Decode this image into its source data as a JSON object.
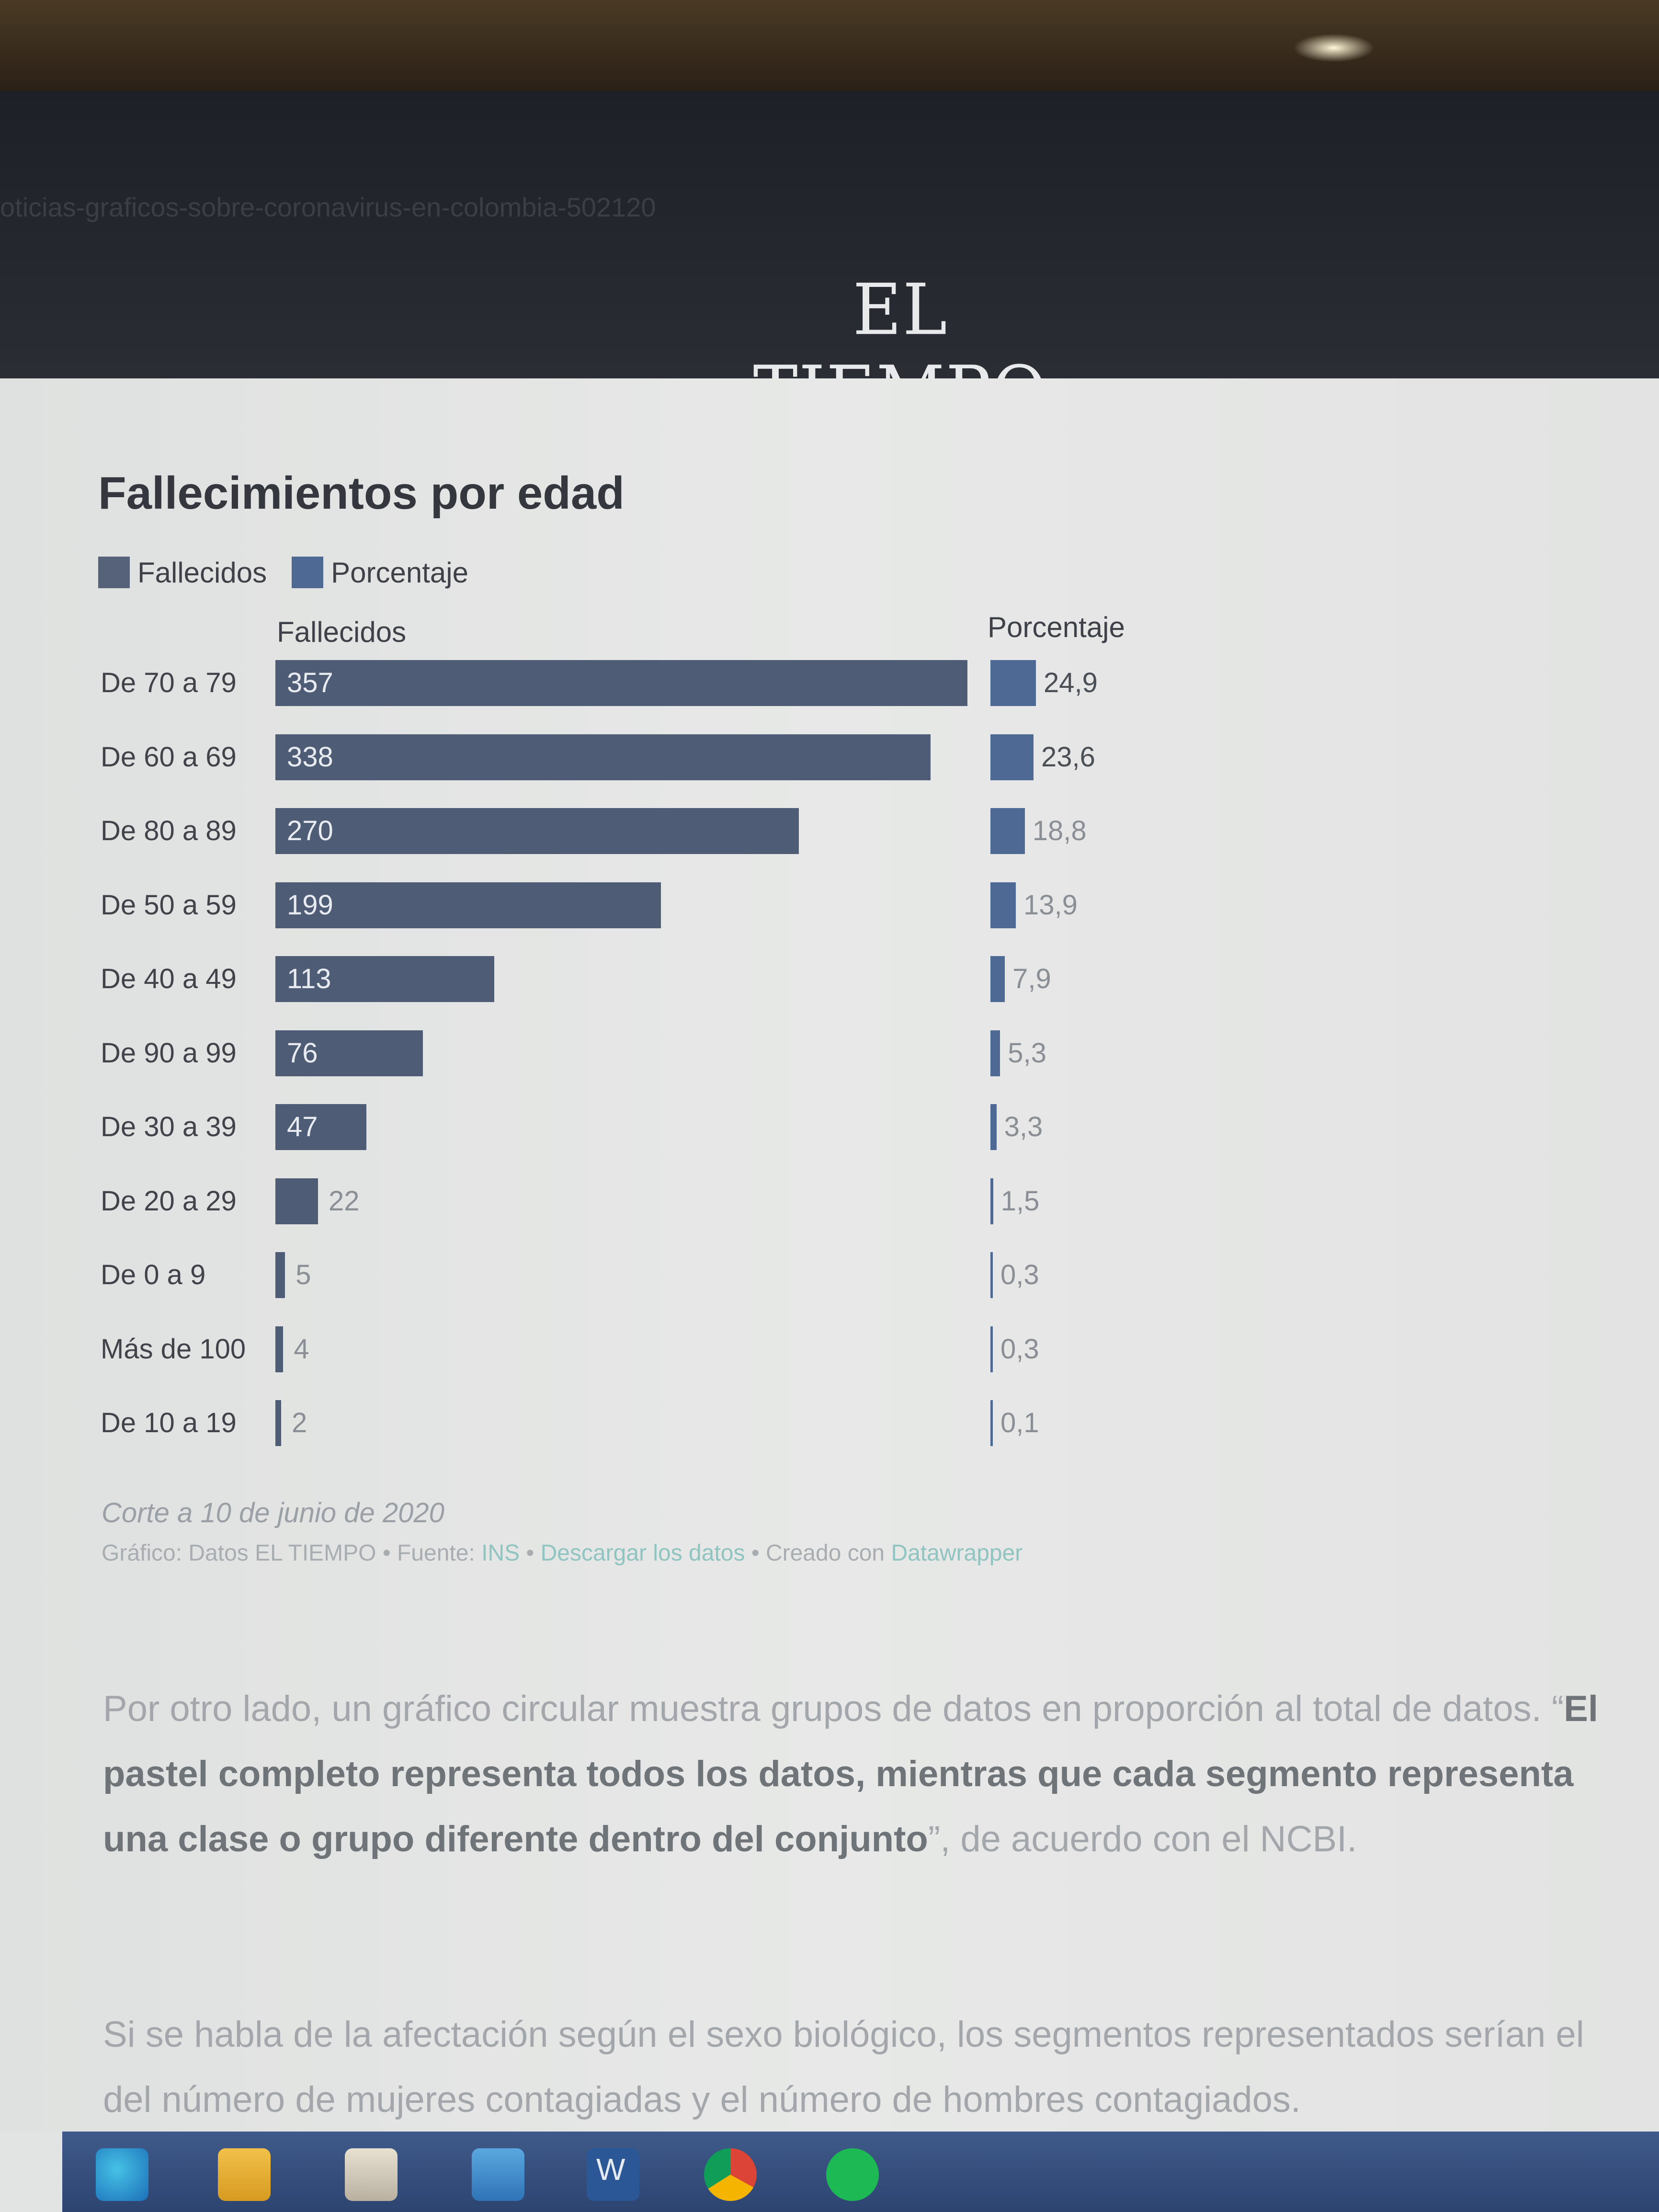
{
  "browser": {
    "url_partial": "oticias-graficos-sobre-coronavirus-en-colombia-502120",
    "site_logo": "EL TIEMPO"
  },
  "chart_data": {
    "type": "bar",
    "title": "Fallecimientos por edad",
    "legend": [
      {
        "name": "Fallecidos",
        "color": "#56627a"
      },
      {
        "name": "Porcentaje",
        "color": "#4e6a94"
      }
    ],
    "legend_placement": "top-left",
    "categories": [
      "De 70 a 79",
      "De 60 a 69",
      "De 80 a 89",
      "De 50 a 59",
      "De 40 a 49",
      "De 90 a 99",
      "De 30 a 39",
      "De 20 a 29",
      "De 0 a 9",
      "Más de 100",
      "De 10 a 19"
    ],
    "series": [
      {
        "name": "Fallecidos",
        "values": [
          357,
          338,
          270,
          199,
          113,
          76,
          47,
          22,
          5,
          4,
          2
        ],
        "labels": [
          "357",
          "338",
          "270",
          "199",
          "113",
          "76",
          "47",
          "22",
          "5",
          "4",
          "2"
        ],
        "color": "#4f5c76"
      },
      {
        "name": "Porcentaje",
        "values": [
          24.9,
          23.6,
          18.8,
          13.9,
          7.9,
          5.3,
          3.3,
          1.5,
          0.3,
          0.3,
          0.1
        ],
        "labels": [
          "24,9",
          "23,6",
          "18,8",
          "13,9",
          "7,9",
          "5,3",
          "3,3",
          "1,5",
          "0,3",
          "0,3",
          "0,1"
        ],
        "color": "#4e6a94"
      }
    ],
    "grid": false,
    "note": "Corte a 10 de junio de 2020",
    "credit": {
      "prefix": "Gráfico: Datos EL TIEMPO • Fuente: ",
      "source_link": "INS",
      "separator": " • ",
      "download_link": "Descargar los datos",
      "created_text": " • Creado con ",
      "tool_link": "Datawrapper"
    }
  },
  "article": {
    "para1_start": "Por otro lado, un gráfico circular muestra grupos de datos en proporción al total de datos. “",
    "para1_bold": "El pastel completo representa todos los datos, mientras que cada segmento representa una clase o grupo diferente dentro del conjunto",
    "para1_end": "”, de acuerdo con el NCBI.",
    "para2": "Si se habla de la afectación según el sexo biológico, los segmentos representados serían el del número de mujeres contagiadas y el número de hombres contagiados."
  },
  "taskbar": {
    "icons": [
      "edge-icon",
      "file-explorer-icon",
      "store-icon",
      "mail-icon",
      "word-icon",
      "chrome-icon",
      "spotify-icon"
    ],
    "word_letter": "W"
  }
}
